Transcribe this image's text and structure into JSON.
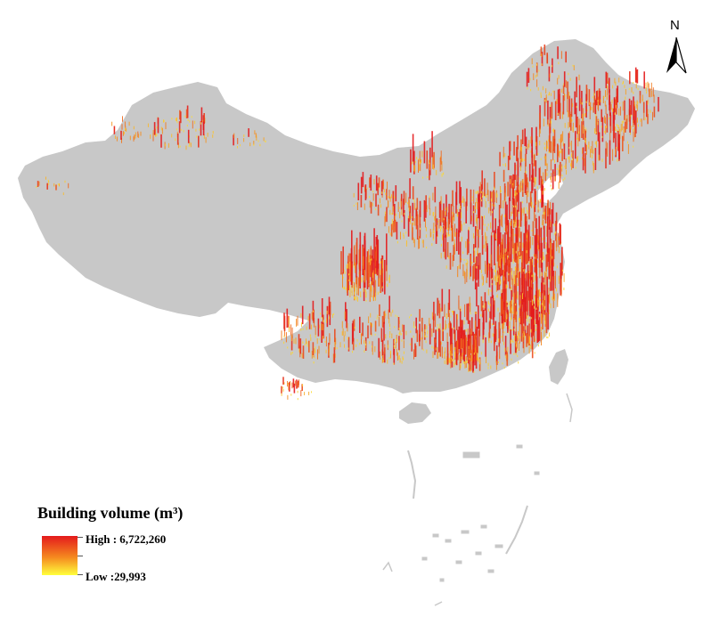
{
  "legend": {
    "title": "Building volume (m³)",
    "high_label": "High : 6,722,260",
    "low_label": "Low :29,993",
    "high_value": 6722260,
    "low_value": 29993,
    "color_high": "#e41a1c",
    "color_mid": "#f58a1f",
    "color_low": "#ffff3c"
  },
  "north_arrow": {
    "label": "N",
    "icon": "north-arrow-icon"
  },
  "map": {
    "land_color": "#c8c8c8",
    "background_color": "#ffffff"
  }
}
